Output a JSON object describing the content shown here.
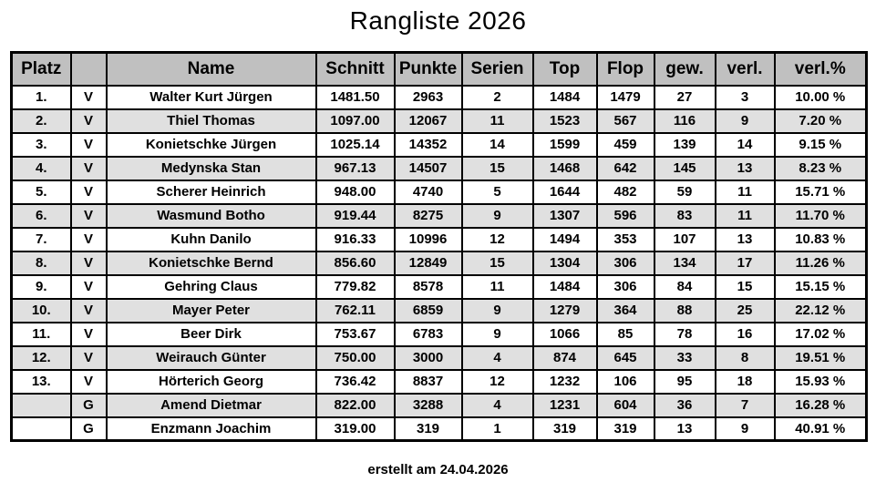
{
  "title": "Rangliste 2026",
  "footer": "erstellt am 24.04.2026",
  "table": {
    "columns": [
      {
        "key": "platz",
        "label": "Platz"
      },
      {
        "key": "tag",
        "label": ""
      },
      {
        "key": "name",
        "label": "Name"
      },
      {
        "key": "schnitt",
        "label": "Schnitt"
      },
      {
        "key": "punkte",
        "label": "Punkte"
      },
      {
        "key": "serien",
        "label": "Serien"
      },
      {
        "key": "top",
        "label": "Top"
      },
      {
        "key": "flop",
        "label": "Flop"
      },
      {
        "key": "gew",
        "label": "gew."
      },
      {
        "key": "verl",
        "label": "verl."
      },
      {
        "key": "verl_pct",
        "label": "verl.%"
      }
    ],
    "rows": [
      {
        "platz": "1.",
        "tag": "V",
        "name": "Walter Kurt Jürgen",
        "schnitt": "1481.50",
        "punkte": "2963",
        "serien": "2",
        "top": "1484",
        "flop": "1479",
        "gew": "27",
        "verl": "3",
        "verl_pct": "10.00 %"
      },
      {
        "platz": "2.",
        "tag": "V",
        "name": "Thiel Thomas",
        "schnitt": "1097.00",
        "punkte": "12067",
        "serien": "11",
        "top": "1523",
        "flop": "567",
        "gew": "116",
        "verl": "9",
        "verl_pct": "7.20 %"
      },
      {
        "platz": "3.",
        "tag": "V",
        "name": "Konietschke Jürgen",
        "schnitt": "1025.14",
        "punkte": "14352",
        "serien": "14",
        "top": "1599",
        "flop": "459",
        "gew": "139",
        "verl": "14",
        "verl_pct": "9.15 %"
      },
      {
        "platz": "4.",
        "tag": "V",
        "name": "Medynska Stan",
        "schnitt": "967.13",
        "punkte": "14507",
        "serien": "15",
        "top": "1468",
        "flop": "642",
        "gew": "145",
        "verl": "13",
        "verl_pct": "8.23 %"
      },
      {
        "platz": "5.",
        "tag": "V",
        "name": "Scherer Heinrich",
        "schnitt": "948.00",
        "punkte": "4740",
        "serien": "5",
        "top": "1644",
        "flop": "482",
        "gew": "59",
        "verl": "11",
        "verl_pct": "15.71 %"
      },
      {
        "platz": "6.",
        "tag": "V",
        "name": "Wasmund Botho",
        "schnitt": "919.44",
        "punkte": "8275",
        "serien": "9",
        "top": "1307",
        "flop": "596",
        "gew": "83",
        "verl": "11",
        "verl_pct": "11.70 %"
      },
      {
        "platz": "7.",
        "tag": "V",
        "name": "Kuhn Danilo",
        "schnitt": "916.33",
        "punkte": "10996",
        "serien": "12",
        "top": "1494",
        "flop": "353",
        "gew": "107",
        "verl": "13",
        "verl_pct": "10.83 %"
      },
      {
        "platz": "8.",
        "tag": "V",
        "name": "Konietschke Bernd",
        "schnitt": "856.60",
        "punkte": "12849",
        "serien": "15",
        "top": "1304",
        "flop": "306",
        "gew": "134",
        "verl": "17",
        "verl_pct": "11.26 %"
      },
      {
        "platz": "9.",
        "tag": "V",
        "name": "Gehring Claus",
        "schnitt": "779.82",
        "punkte": "8578",
        "serien": "11",
        "top": "1484",
        "flop": "306",
        "gew": "84",
        "verl": "15",
        "verl_pct": "15.15 %"
      },
      {
        "platz": "10.",
        "tag": "V",
        "name": "Mayer Peter",
        "schnitt": "762.11",
        "punkte": "6859",
        "serien": "9",
        "top": "1279",
        "flop": "364",
        "gew": "88",
        "verl": "25",
        "verl_pct": "22.12 %"
      },
      {
        "platz": "11.",
        "tag": "V",
        "name": "Beer Dirk",
        "schnitt": "753.67",
        "punkte": "6783",
        "serien": "9",
        "top": "1066",
        "flop": "85",
        "gew": "78",
        "verl": "16",
        "verl_pct": "17.02 %"
      },
      {
        "platz": "12.",
        "tag": "V",
        "name": "Weirauch Günter",
        "schnitt": "750.00",
        "punkte": "3000",
        "serien": "4",
        "top": "874",
        "flop": "645",
        "gew": "33",
        "verl": "8",
        "verl_pct": "19.51 %"
      },
      {
        "platz": "13.",
        "tag": "V",
        "name": "Hörterich Georg",
        "schnitt": "736.42",
        "punkte": "8837",
        "serien": "12",
        "top": "1232",
        "flop": "106",
        "gew": "95",
        "verl": "18",
        "verl_pct": "15.93 %"
      },
      {
        "platz": "",
        "tag": "G",
        "name": "Amend Dietmar",
        "schnitt": "822.00",
        "punkte": "3288",
        "serien": "4",
        "top": "1231",
        "flop": "604",
        "gew": "36",
        "verl": "7",
        "verl_pct": "16.28 %"
      },
      {
        "platz": "",
        "tag": "G",
        "name": "Enzmann Joachim",
        "schnitt": "319.00",
        "punkte": "319",
        "serien": "1",
        "top": "319",
        "flop": "319",
        "gew": "13",
        "verl": "9",
        "verl_pct": "40.91 %"
      }
    ]
  },
  "colors": {
    "header_bg": "#c0c0c0",
    "row_alt_bg": "#e0e0e0",
    "border": "#000000"
  }
}
